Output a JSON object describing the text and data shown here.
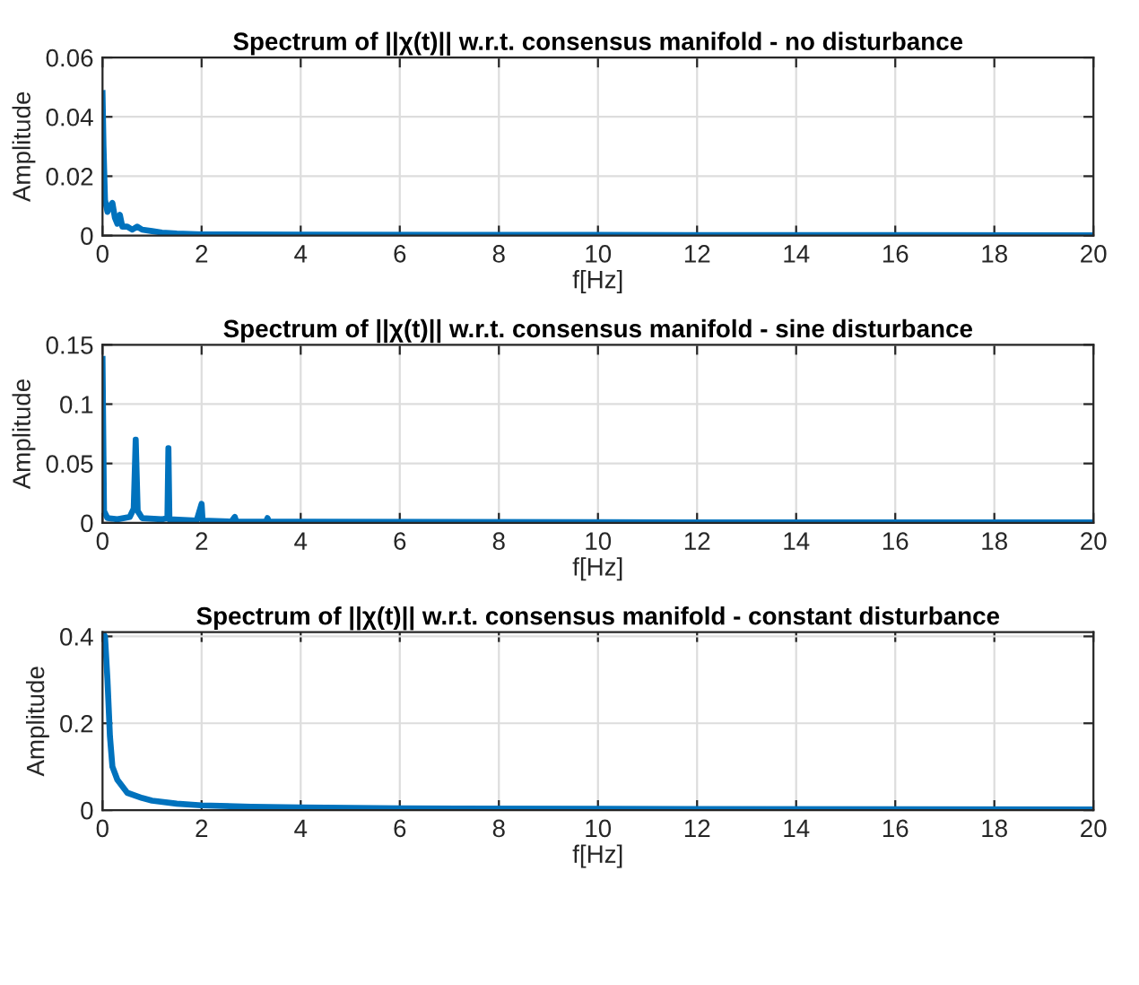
{
  "chart_data": [
    {
      "type": "line",
      "title": "Spectrum of ||χ(t)|| w.r.t. consensus manifold - no disturbance",
      "xlabel": "f[Hz]",
      "ylabel": "Amplitude",
      "xlim": [
        0,
        20
      ],
      "xticks": [
        0,
        2,
        4,
        6,
        8,
        10,
        12,
        14,
        16,
        18,
        20
      ],
      "ylim": [
        0,
        0.06
      ],
      "yticks": [
        0,
        0.02,
        0.04,
        0.06
      ],
      "grid": true,
      "legend": false,
      "series": [
        {
          "color": "#0072bd",
          "x": [
            0,
            0.02,
            0.05,
            0.1,
            0.15,
            0.2,
            0.25,
            0.3,
            0.35,
            0.4,
            0.5,
            0.6,
            0.7,
            0.8,
            1,
            1.2,
            1.5,
            2,
            4,
            10,
            20
          ],
          "values": [
            0.048,
            0.03,
            0.012,
            0.008,
            0.01,
            0.011,
            0.006,
            0.004,
            0.007,
            0.003,
            0.003,
            0.002,
            0.003,
            0.002,
            0.0015,
            0.001,
            0.0007,
            0.0004,
            0.0003,
            0.0002,
            0.0001
          ]
        }
      ]
    },
    {
      "type": "line",
      "title": "Spectrum of ||χ(t)|| w.r.t. consensus manifold - sine disturbance",
      "xlabel": "f[Hz]",
      "ylabel": "Amplitude",
      "xlim": [
        0,
        20
      ],
      "xticks": [
        0,
        2,
        4,
        6,
        8,
        10,
        12,
        14,
        16,
        18,
        20
      ],
      "ylim": [
        0,
        0.15
      ],
      "yticks": [
        0,
        0.05,
        0.1,
        0.15
      ],
      "grid": true,
      "legend": false,
      "series": [
        {
          "color": "#0072bd",
          "x": [
            0,
            0.03,
            0.1,
            0.3,
            0.55,
            0.63,
            0.67,
            0.71,
            0.8,
            1.2,
            1.31,
            1.33,
            1.35,
            1.9,
            2.0,
            2.02,
            2.6,
            2.67,
            2.7,
            3.3,
            3.33,
            3.36,
            4,
            10,
            20
          ],
          "values": [
            0.138,
            0.01,
            0.004,
            0.003,
            0.005,
            0.012,
            0.07,
            0.01,
            0.004,
            0.003,
            0.004,
            0.063,
            0.003,
            0.002,
            0.016,
            0.002,
            0.001,
            0.005,
            0.001,
            0.001,
            0.004,
            0.001,
            0.001,
            0.0005,
            0.0003
          ]
        }
      ]
    },
    {
      "type": "line",
      "title": "Spectrum of ||χ(t)|| w.r.t. consensus manifold - constant disturbance",
      "xlabel": "f[Hz]",
      "ylabel": "Amplitude",
      "xlim": [
        0,
        20
      ],
      "xticks": [
        0,
        2,
        4,
        6,
        8,
        10,
        12,
        14,
        16,
        18,
        20
      ],
      "ylim": [
        0,
        0.41
      ],
      "yticks": [
        0,
        0.2,
        0.4
      ],
      "grid": true,
      "legend": false,
      "series": [
        {
          "color": "#0072bd",
          "x": [
            0,
            0.05,
            0.1,
            0.15,
            0.2,
            0.3,
            0.5,
            0.8,
            1,
            1.5,
            2,
            3,
            4,
            6,
            10,
            20
          ],
          "values": [
            0.41,
            0.4,
            0.3,
            0.17,
            0.1,
            0.07,
            0.04,
            0.028,
            0.022,
            0.015,
            0.011,
            0.008,
            0.006,
            0.004,
            0.003,
            0.0015
          ]
        }
      ]
    }
  ]
}
